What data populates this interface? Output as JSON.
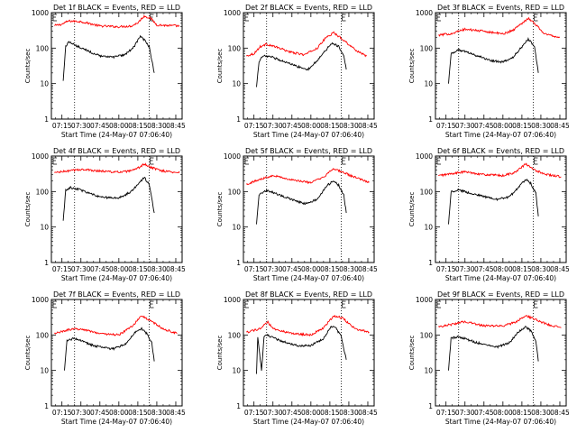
{
  "figure": {
    "ylabel": "Counts/sec",
    "xlabel": "Start Time (24-May-07 07:06:40)"
  },
  "chart_data": [
    {
      "type": "line",
      "title": "Det 1f BLACK = Events, RED = LLD",
      "xlabel": "Start Time (24-May-07 07:06:40)",
      "ylabel": "Counts/sec",
      "x_tick_labels": [
        "07:15",
        "07:30",
        "07:45",
        "08:00",
        "08:15",
        "08:30",
        "08:45"
      ],
      "y_tick_labels": [
        "1",
        "10",
        "100",
        "1000"
      ],
      "y_scale": "log",
      "ylim": [
        1,
        1000
      ],
      "xlim": [
        "07:06:40",
        "08:50:00"
      ],
      "markers": [
        "07:25:00",
        "08:24:00"
      ],
      "series": [
        {
          "color": "#ff0000",
          "x": [
            "07:09",
            "07:15",
            "07:20",
            "07:30",
            "07:45",
            "08:00",
            "08:10",
            "08:15",
            "08:20",
            "08:25",
            "08:30",
            "08:40",
            "08:48"
          ],
          "y": [
            430,
            470,
            580,
            560,
            420,
            400,
            420,
            520,
            800,
            700,
            450,
            430,
            420
          ]
        },
        {
          "color": "#000000",
          "x": [
            "07:16",
            "07:18",
            "07:20",
            "07:30",
            "07:45",
            "07:55",
            "08:05",
            "08:12",
            "08:17",
            "08:20",
            "08:24",
            "08:28"
          ],
          "y": [
            12,
            110,
            150,
            100,
            60,
            55,
            65,
            110,
            220,
            170,
            110,
            20
          ]
        }
      ]
    },
    {
      "type": "line",
      "title": "Det 2f BLACK = Events, RED = LLD",
      "xlabel": "Start Time (24-May-07 07:06:40)",
      "ylabel": "Counts/sec",
      "x_tick_labels": [
        "07:15",
        "07:30",
        "07:45",
        "08:00",
        "08:15",
        "08:30",
        "08:45"
      ],
      "y_tick_labels": [
        "1",
        "10",
        "100",
        "1000"
      ],
      "y_scale": "log",
      "ylim": [
        1,
        1000
      ],
      "xlim": [
        "07:06:40",
        "08:50:00"
      ],
      "markers": [
        "07:25:00",
        "08:24:00"
      ],
      "series": [
        {
          "color": "#ff0000",
          "x": [
            "07:09",
            "07:15",
            "07:20",
            "07:25",
            "07:35",
            "07:45",
            "07:55",
            "08:05",
            "08:12",
            "08:18",
            "08:25",
            "08:35",
            "08:44"
          ],
          "y": [
            60,
            70,
            110,
            130,
            100,
            75,
            65,
            100,
            200,
            270,
            180,
            90,
            60
          ]
        },
        {
          "color": "#000000",
          "x": [
            "07:17",
            "07:19",
            "07:22",
            "07:30",
            "07:40",
            "07:50",
            "07:58",
            "08:05",
            "08:12",
            "08:17",
            "08:22",
            "08:26",
            "08:28"
          ],
          "y": [
            8,
            40,
            60,
            55,
            40,
            30,
            25,
            45,
            90,
            140,
            110,
            60,
            25
          ]
        }
      ]
    },
    {
      "type": "line",
      "title": "Det 3f BLACK = Events, RED = LLD",
      "xlabel": "Start Time (24-May-07 07:06:40)",
      "ylabel": "Counts/sec",
      "x_tick_labels": [
        "07:15",
        "07:30",
        "07:45",
        "08:00",
        "08:15",
        "08:30",
        "08:45"
      ],
      "y_tick_labels": [
        "1",
        "10",
        "100",
        "1000"
      ],
      "y_scale": "log",
      "ylim": [
        1,
        1000
      ],
      "xlim": [
        "07:06:40",
        "08:50:00"
      ],
      "markers": [
        "07:25:00",
        "08:24:00"
      ],
      "series": [
        {
          "color": "#ff0000",
          "x": [
            "07:09",
            "07:20",
            "07:30",
            "07:45",
            "08:00",
            "08:08",
            "08:15",
            "08:20",
            "08:25",
            "08:33",
            "08:45"
          ],
          "y": [
            230,
            260,
            340,
            300,
            250,
            320,
            500,
            700,
            500,
            250,
            200
          ]
        },
        {
          "color": "#000000",
          "x": [
            "07:17",
            "07:19",
            "07:25",
            "07:35",
            "07:50",
            "08:00",
            "08:08",
            "08:15",
            "08:20",
            "08:25",
            "08:28"
          ],
          "y": [
            10,
            70,
            90,
            70,
            45,
            40,
            55,
            110,
            180,
            110,
            20
          ]
        }
      ]
    },
    {
      "type": "line",
      "title": "Det 4f BLACK = Events, RED = LLD",
      "xlabel": "Start Time (24-May-07 07:06:40)",
      "ylabel": "Counts/sec",
      "x_tick_labels": [
        "07:15",
        "07:30",
        "07:45",
        "08:00",
        "08:15",
        "08:30",
        "08:45"
      ],
      "y_tick_labels": [
        "1",
        "10",
        "100",
        "1000"
      ],
      "y_scale": "log",
      "ylim": [
        1,
        1000
      ],
      "xlim": [
        "07:06:40",
        "08:50:00"
      ],
      "markers": [
        "07:25:00",
        "08:24:00"
      ],
      "series": [
        {
          "color": "#ff0000",
          "x": [
            "07:09",
            "07:20",
            "07:30",
            "07:45",
            "08:00",
            "08:10",
            "08:15",
            "08:20",
            "08:25",
            "08:35",
            "08:48"
          ],
          "y": [
            340,
            380,
            420,
            380,
            350,
            380,
            450,
            600,
            480,
            380,
            340
          ]
        },
        {
          "color": "#000000",
          "x": [
            "07:16",
            "07:18",
            "07:22",
            "07:30",
            "07:45",
            "08:00",
            "08:10",
            "08:16",
            "08:20",
            "08:24",
            "08:28"
          ],
          "y": [
            15,
            110,
            130,
            110,
            70,
            65,
            100,
            180,
            250,
            160,
            25
          ]
        }
      ]
    },
    {
      "type": "line",
      "title": "Det 5f BLACK = Events, RED = LLD",
      "xlabel": "Start Time (24-May-07 07:06:40)",
      "ylabel": "Counts/sec",
      "x_tick_labels": [
        "07:15",
        "07:30",
        "07:45",
        "08:00",
        "08:15",
        "08:30",
        "08:45"
      ],
      "y_tick_labels": [
        "1",
        "10",
        "100",
        "1000"
      ],
      "y_scale": "log",
      "ylim": [
        1,
        1000
      ],
      "xlim": [
        "07:06:40",
        "08:50:00"
      ],
      "markers": [
        "07:25:00",
        "08:24:00"
      ],
      "series": [
        {
          "color": "#ff0000",
          "x": [
            "07:09",
            "07:20",
            "07:30",
            "07:45",
            "08:00",
            "08:10",
            "08:18",
            "08:25",
            "08:35",
            "08:46"
          ],
          "y": [
            160,
            220,
            290,
            210,
            180,
            250,
            450,
            350,
            250,
            180
          ]
        },
        {
          "color": "#000000",
          "x": [
            "07:17",
            "07:19",
            "07:25",
            "07:40",
            "07:55",
            "08:05",
            "08:13",
            "08:18",
            "08:22",
            "08:26",
            "08:28"
          ],
          "y": [
            12,
            80,
            110,
            70,
            45,
            60,
            150,
            200,
            150,
            80,
            25
          ]
        }
      ]
    },
    {
      "type": "line",
      "title": "Det 6f BLACK = Events, RED = LLD",
      "xlabel": "Start Time (24-May-07 07:06:40)",
      "ylabel": "Counts/sec",
      "x_tick_labels": [
        "07:15",
        "07:30",
        "07:45",
        "08:00",
        "08:15",
        "08:30",
        "08:45"
      ],
      "y_tick_labels": [
        "1",
        "10",
        "100",
        "1000"
      ],
      "y_scale": "log",
      "ylim": [
        1,
        1000
      ],
      "xlim": [
        "07:06:40",
        "08:50:00"
      ],
      "markers": [
        "07:25:00",
        "08:24:00"
      ],
      "series": [
        {
          "color": "#ff0000",
          "x": [
            "07:09",
            "07:20",
            "07:30",
            "07:45",
            "08:00",
            "08:10",
            "08:18",
            "08:25",
            "08:35",
            "08:46"
          ],
          "y": [
            280,
            320,
            360,
            300,
            280,
            350,
            600,
            400,
            300,
            260
          ]
        },
        {
          "color": "#000000",
          "x": [
            "07:17",
            "07:19",
            "07:25",
            "07:40",
            "07:55",
            "08:05",
            "08:13",
            "08:18",
            "08:22",
            "08:26",
            "08:28"
          ],
          "y": [
            12,
            100,
            110,
            80,
            60,
            70,
            140,
            220,
            170,
            90,
            20
          ]
        }
      ]
    },
    {
      "type": "line",
      "title": "Det 7f BLACK = Events, RED = LLD",
      "xlabel": "Start Time (24-May-07 07:06:40)",
      "ylabel": "Counts/sec",
      "x_tick_labels": [
        "07:15",
        "07:30",
        "07:45",
        "08:00",
        "08:15",
        "08:30",
        "08:45"
      ],
      "y_tick_labels": [
        "1",
        "10",
        "100",
        "1000"
      ],
      "y_scale": "log",
      "ylim": [
        1,
        1000
      ],
      "xlim": [
        "07:06:40",
        "08:50:00"
      ],
      "markers": [
        "07:25:00",
        "08:24:00"
      ],
      "series": [
        {
          "color": "#ff0000",
          "x": [
            "07:09",
            "07:20",
            "07:30",
            "07:45",
            "08:00",
            "08:10",
            "08:18",
            "08:25",
            "08:35",
            "08:46"
          ],
          "y": [
            110,
            140,
            150,
            110,
            100,
            170,
            350,
            250,
            150,
            110
          ]
        },
        {
          "color": "#000000",
          "x": [
            "07:17",
            "07:19",
            "07:25",
            "07:40",
            "07:55",
            "08:05",
            "08:13",
            "08:18",
            "08:22",
            "08:26",
            "08:28"
          ],
          "y": [
            10,
            70,
            80,
            50,
            40,
            55,
            120,
            150,
            110,
            60,
            18
          ]
        }
      ]
    },
    {
      "type": "line",
      "title": "Det 8f BLACK = Events, RED = LLD",
      "xlabel": "Start Time (24-May-07 07:06:40)",
      "ylabel": "Counts/sec",
      "x_tick_labels": [
        "07:15",
        "07:30",
        "07:45",
        "08:00",
        "08:15",
        "08:30",
        "08:45"
      ],
      "y_tick_labels": [
        "1",
        "10",
        "100",
        "1000"
      ],
      "y_scale": "log",
      "ylim": [
        1,
        1000
      ],
      "xlim": [
        "07:06:40",
        "08:50:00"
      ],
      "markers": [
        "07:25:00",
        "08:24:00"
      ],
      "series": [
        {
          "color": "#ff0000",
          "x": [
            "07:09",
            "07:20",
            "07:26",
            "07:30",
            "07:45",
            "08:00",
            "08:10",
            "08:18",
            "08:25",
            "08:35",
            "08:46"
          ],
          "y": [
            120,
            150,
            230,
            150,
            110,
            100,
            160,
            350,
            300,
            150,
            120
          ]
        },
        {
          "color": "#000000",
          "x": [
            "07:17",
            "07:18",
            "07:21",
            "07:23",
            "07:25",
            "07:35",
            "07:50",
            "08:00",
            "08:10",
            "08:16",
            "08:20",
            "08:24",
            "08:28"
          ],
          "y": [
            8,
            90,
            10,
            90,
            100,
            70,
            50,
            50,
            80,
            180,
            150,
            90,
            20
          ]
        }
      ]
    },
    {
      "type": "line",
      "title": "Det 9f BLACK = Events, RED = LLD",
      "xlabel": "Start Time (24-May-07 07:06:40)",
      "ylabel": "Counts/sec",
      "x_tick_labels": [
        "07:15",
        "07:30",
        "07:45",
        "08:00",
        "08:15",
        "08:30",
        "08:45"
      ],
      "y_tick_labels": [
        "1",
        "10",
        "100",
        "1000"
      ],
      "y_scale": "log",
      "ylim": [
        1,
        1000
      ],
      "xlim": [
        "07:06:40",
        "08:50:00"
      ],
      "markers": [
        "07:25:00",
        "08:24:00"
      ],
      "series": [
        {
          "color": "#ff0000",
          "x": [
            "07:09",
            "07:20",
            "07:30",
            "07:45",
            "08:00",
            "08:10",
            "08:18",
            "08:25",
            "08:35",
            "08:46"
          ],
          "y": [
            170,
            200,
            240,
            180,
            180,
            230,
            350,
            280,
            200,
            160
          ]
        },
        {
          "color": "#000000",
          "x": [
            "07:17",
            "07:19",
            "07:25",
            "07:40",
            "07:55",
            "08:05",
            "08:13",
            "08:18",
            "08:22",
            "08:26",
            "08:28"
          ],
          "y": [
            10,
            80,
            90,
            60,
            45,
            60,
            130,
            170,
            130,
            70,
            18
          ]
        }
      ]
    }
  ]
}
